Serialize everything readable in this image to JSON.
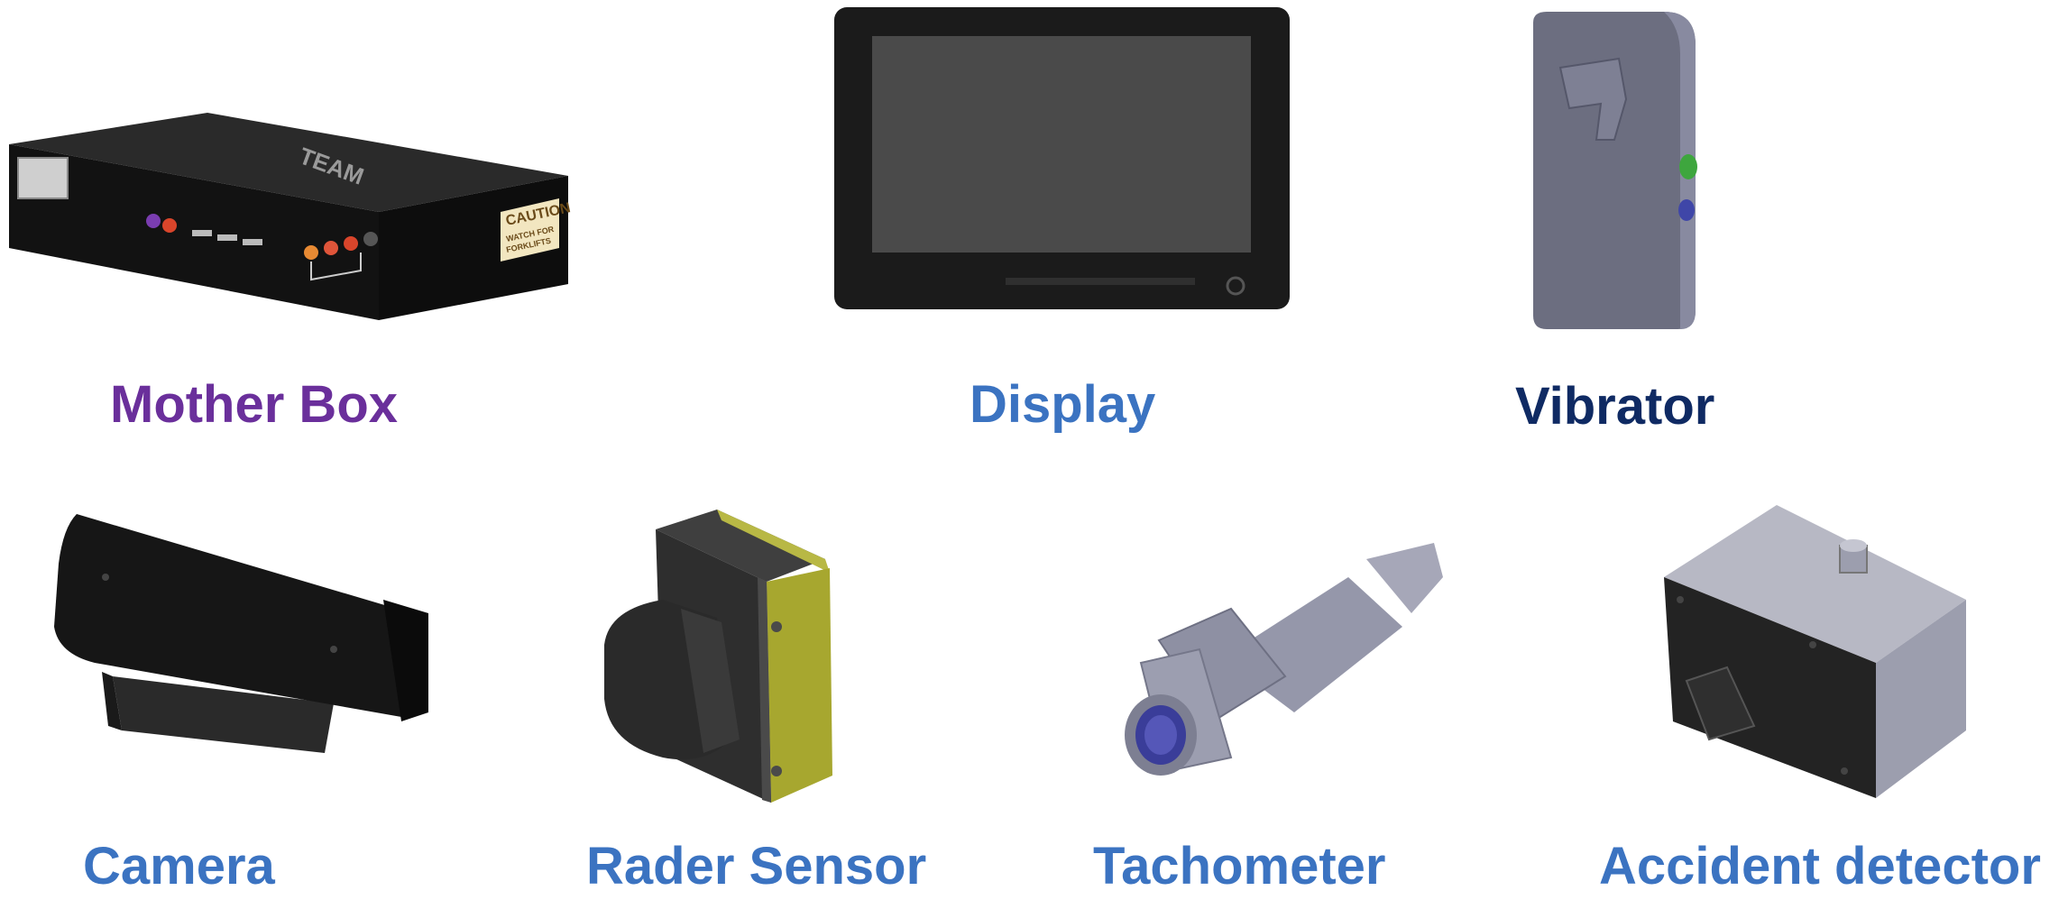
{
  "components": [
    {
      "id": "mother-box",
      "label": "Mother Box",
      "color": "#6a2f9b"
    },
    {
      "id": "display",
      "label": "Display",
      "color": "#3b73c1"
    },
    {
      "id": "vibrator",
      "label": "Vibrator",
      "color": "#0f2a63"
    },
    {
      "id": "camera",
      "label": "Camera",
      "color": "#3b73c1"
    },
    {
      "id": "rader-sensor",
      "label": "Rader Sensor",
      "color": "#3b73c1"
    },
    {
      "id": "tachometer",
      "label": "Tachometer",
      "color": "#3b73c1"
    },
    {
      "id": "accident-detector",
      "label": "Accident detector",
      "color": "#3b73c1"
    }
  ],
  "device_text": {
    "caution_title": "CAUTION",
    "caution_body_1": "WATCH FOR",
    "caution_body_2": "FORKLIFTS",
    "brand": "TEAM"
  }
}
